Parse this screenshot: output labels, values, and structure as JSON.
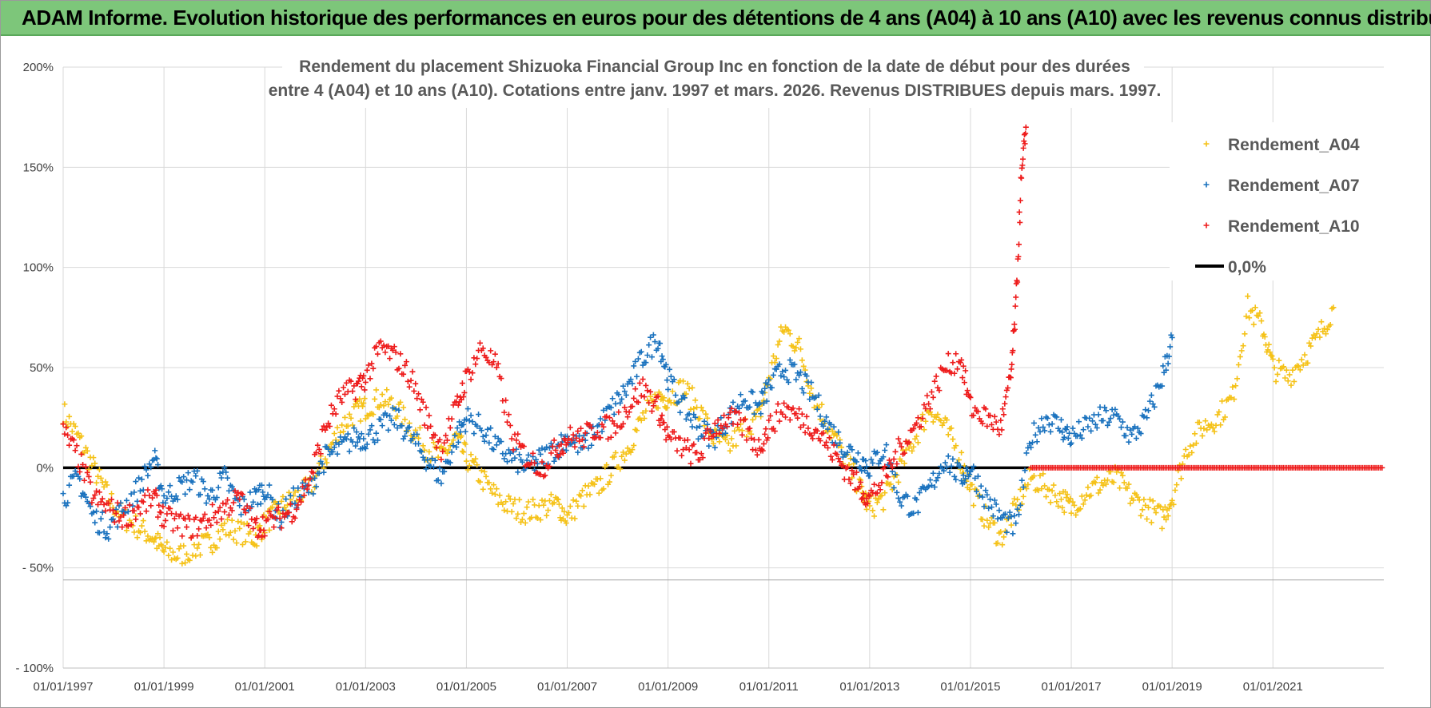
{
  "banner": {
    "title": "ADAM Informe. Evolution historique des performances en euros pour des détentions de 4 ans (A04) à 10 ans (A10) avec les revenus connus distribués"
  },
  "chart_data": {
    "type": "scatter",
    "title_line1": "Rendement du placement Shizuoka Financial Group Inc en fonction de la date de début pour des durées",
    "title_line2": "entre 4 (A04) et 10 ans (A10).  Cotations entre janv. 1997 et mars. 2026. Revenus DISTRIBUES depuis mars. 1997.",
    "y_ticks": [
      "200%",
      "150%",
      "100%",
      "50%",
      "0%",
      "- 50%",
      "- 100%"
    ],
    "y_tick_values": [
      200,
      150,
      100,
      50,
      0,
      -50,
      -100
    ],
    "ylim": [
      -100,
      200
    ],
    "x_ticks": [
      "01/01/1997",
      "01/01/1999",
      "01/01/2001",
      "01/01/2003",
      "01/01/2005",
      "01/01/2007",
      "01/01/2009",
      "01/01/2011",
      "01/01/2013",
      "01/01/2015",
      "01/01/2017",
      "01/01/2019",
      "01/01/2021"
    ],
    "xlim": [
      1997.0,
      2023.2
    ],
    "grid": true,
    "legend_position": "top-right",
    "legend": [
      {
        "label": "Rendement_A04",
        "color": "#f5c218",
        "marker": "+"
      },
      {
        "label": "Rendement_A07",
        "color": "#1a72be",
        "marker": "+"
      },
      {
        "label": "Rendement_A10",
        "color": "#ee1c1c",
        "marker": "+"
      },
      {
        "label": "0,0%",
        "color": "#000000",
        "marker": "line"
      }
    ],
    "series": [
      {
        "name": "Rendement_A04",
        "color": "#f5c218",
        "x": [
          1997.0,
          1997.3,
          1997.6,
          1997.9,
          1998.2,
          1998.5,
          1998.8,
          1999.0,
          1999.3,
          1999.6,
          1999.9,
          2000.2,
          2000.5,
          2000.8,
          2001.0,
          2001.3,
          2001.6,
          2001.9,
          2002.2,
          2002.5,
          2002.8,
          2003.0,
          2003.3,
          2003.6,
          2003.9,
          2004.2,
          2004.5,
          2004.8,
          2005.0,
          2005.3,
          2005.6,
          2005.9,
          2006.2,
          2006.5,
          2006.8,
          2007.0,
          2007.3,
          2007.6,
          2007.9,
          2008.2,
          2008.5,
          2008.8,
          2009.0,
          2009.3,
          2009.6,
          2009.9,
          2010.2,
          2010.5,
          2010.8,
          2011.0,
          2011.3,
          2011.6,
          2011.9,
          2012.2,
          2012.5,
          2012.8,
          2013.0,
          2013.3,
          2013.6,
          2013.9,
          2014.2,
          2014.5,
          2014.8,
          2015.0,
          2015.3,
          2015.6,
          2015.9,
          2016.2,
          2016.5,
          2016.8,
          2017.0,
          2017.3,
          2017.6,
          2017.9,
          2018.2,
          2018.5,
          2018.8,
          2019.0,
          2019.3,
          2019.6,
          2019.9,
          2020.2,
          2020.5,
          2020.8,
          2021.0,
          2021.3,
          2021.6,
          2021.9,
          2022.2
        ],
        "y": [
          28,
          15,
          0,
          -15,
          -25,
          -30,
          -35,
          -42,
          -44,
          -40,
          -38,
          -30,
          -32,
          -35,
          -28,
          -20,
          -15,
          -10,
          5,
          20,
          28,
          30,
          35,
          30,
          20,
          10,
          5,
          15,
          5,
          -5,
          -15,
          -20,
          -22,
          -20,
          -18,
          -25,
          -15,
          -10,
          0,
          10,
          25,
          35,
          35,
          40,
          30,
          15,
          10,
          20,
          25,
          45,
          70,
          60,
          35,
          20,
          5,
          -10,
          -20,
          -15,
          0,
          15,
          30,
          20,
          5,
          -10,
          -25,
          -35,
          -20,
          -5,
          -10,
          -15,
          -20,
          -12,
          -8,
          -5,
          -15,
          -20,
          -25,
          -15,
          10,
          20,
          25,
          35,
          80,
          70,
          50,
          45,
          55,
          65,
          80
        ]
      },
      {
        "name": "Rendement_A07",
        "color": "#1a72be",
        "x": [
          1997.0,
          1997.3,
          1997.6,
          1997.9,
          1998.2,
          1998.5,
          1998.8,
          1999.0,
          1999.3,
          1999.6,
          1999.9,
          2000.2,
          2000.5,
          2000.8,
          2001.0,
          2001.3,
          2001.6,
          2001.9,
          2002.2,
          2002.5,
          2002.8,
          2003.0,
          2003.3,
          2003.6,
          2003.9,
          2004.2,
          2004.5,
          2004.8,
          2005.0,
          2005.3,
          2005.6,
          2005.9,
          2006.2,
          2006.5,
          2006.8,
          2007.0,
          2007.3,
          2007.6,
          2007.9,
          2008.2,
          2008.5,
          2008.8,
          2009.0,
          2009.3,
          2009.6,
          2009.9,
          2010.2,
          2010.5,
          2010.8,
          2011.0,
          2011.3,
          2011.6,
          2011.9,
          2012.2,
          2012.5,
          2012.8,
          2013.0,
          2013.3,
          2013.6,
          2013.9,
          2014.2,
          2014.5,
          2014.8,
          2015.0,
          2015.3,
          2015.6,
          2015.9,
          2016.2,
          2016.5,
          2016.8,
          2017.0,
          2017.3,
          2017.6,
          2017.9,
          2018.2,
          2018.5,
          2018.8,
          2019.0
        ],
        "y": [
          -15,
          -5,
          -25,
          -30,
          -20,
          -10,
          5,
          -15,
          -10,
          -5,
          -15,
          -5,
          -20,
          -15,
          -10,
          -25,
          -15,
          -10,
          5,
          10,
          15,
          15,
          20,
          25,
          15,
          5,
          -5,
          15,
          25,
          20,
          10,
          5,
          0,
          5,
          10,
          15,
          10,
          20,
          30,
          40,
          55,
          65,
          45,
          30,
          20,
          15,
          25,
          35,
          30,
          40,
          50,
          45,
          35,
          20,
          10,
          5,
          0,
          10,
          -15,
          -20,
          -10,
          5,
          -5,
          0,
          -15,
          -25,
          -30,
          15,
          25,
          20,
          15,
          20,
          25,
          25,
          15,
          25,
          45,
          65
        ]
      },
      {
        "name": "Rendement_A10",
        "color": "#ee1c1c",
        "x": [
          1997.0,
          1997.3,
          1997.6,
          1997.9,
          1998.2,
          1998.5,
          1998.8,
          1999.0,
          1999.3,
          1999.6,
          1999.9,
          2000.2,
          2000.5,
          2000.8,
          2001.0,
          2001.3,
          2001.6,
          2001.9,
          2002.2,
          2002.5,
          2002.8,
          2003.0,
          2003.3,
          2003.6,
          2003.9,
          2004.2,
          2004.5,
          2004.8,
          2005.0,
          2005.3,
          2005.6,
          2005.9,
          2006.2,
          2006.5,
          2006.8,
          2007.0,
          2007.3,
          2007.6,
          2007.9,
          2008.2,
          2008.5,
          2008.8,
          2009.0,
          2009.3,
          2009.6,
          2009.9,
          2010.2,
          2010.5,
          2010.8,
          2011.0,
          2011.3,
          2011.6,
          2011.9,
          2012.2,
          2012.5,
          2012.8,
          2013.0,
          2013.3,
          2013.6,
          2013.9,
          2014.2,
          2014.5,
          2014.8,
          2015.0,
          2015.3,
          2015.6,
          2015.8,
          2015.9,
          2016.0,
          2016.1
        ],
        "y": [
          18,
          5,
          -15,
          -20,
          -25,
          -20,
          -15,
          -25,
          -28,
          -30,
          -25,
          -20,
          -15,
          -30,
          -28,
          -25,
          -20,
          -5,
          20,
          35,
          40,
          45,
          60,
          55,
          45,
          25,
          10,
          30,
          45,
          60,
          50,
          15,
          5,
          0,
          10,
          15,
          15,
          20,
          20,
          30,
          40,
          30,
          15,
          10,
          5,
          20,
          25,
          20,
          10,
          20,
          30,
          25,
          20,
          10,
          0,
          -10,
          -15,
          -5,
          10,
          20,
          35,
          50,
          55,
          30,
          25,
          20,
          45,
          80,
          140,
          170
        ]
      }
    ],
    "zero_line_series": {
      "name": "0,0%",
      "color": "#000000",
      "value": 0,
      "x_start": 1997.0,
      "x_end": 2016.2
    },
    "a10_flat_after_2016": {
      "color": "#ee1c1c",
      "value": 0,
      "x_start": 2016.2,
      "x_end": 2023.2
    }
  }
}
